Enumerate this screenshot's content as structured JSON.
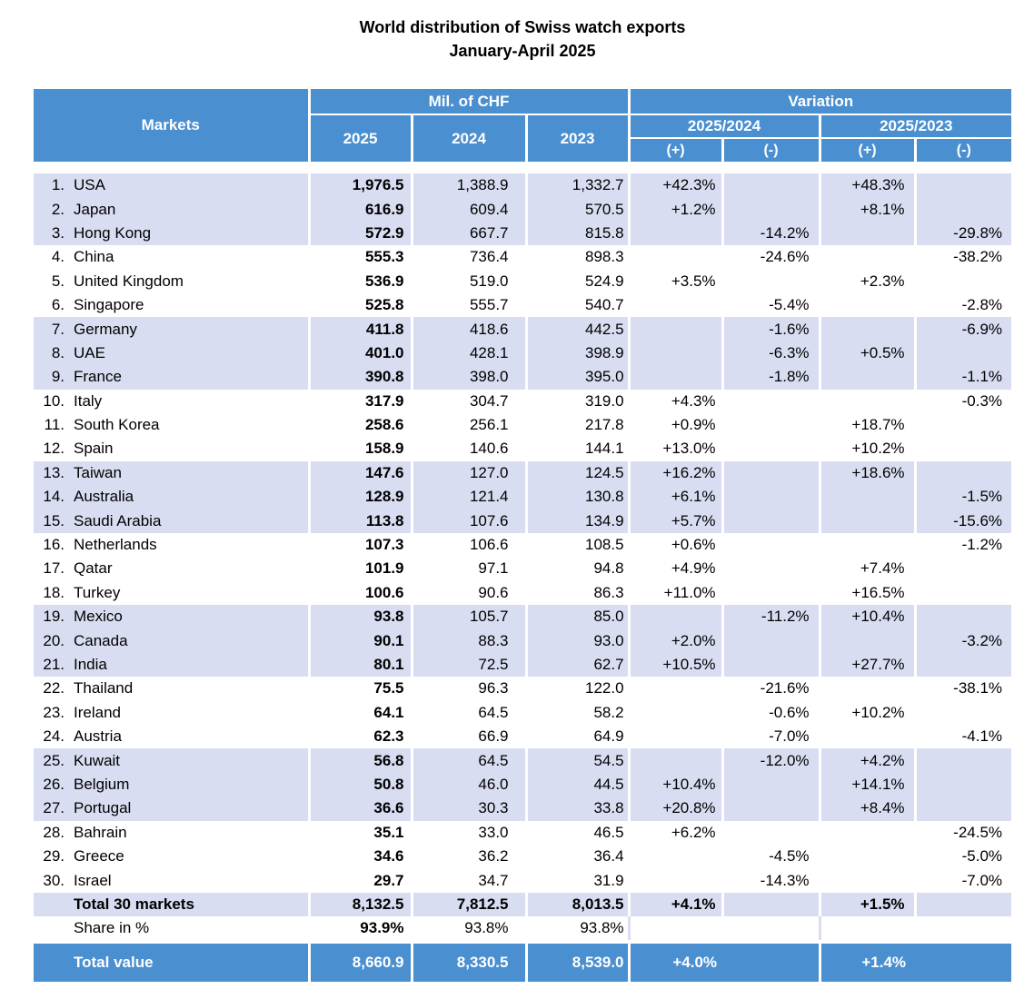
{
  "title": "World distribution of Swiss watch exports",
  "subtitle": "January-April 2025",
  "header": {
    "markets": "Markets",
    "mil_chf": "Mil. of CHF",
    "variation": "Variation",
    "y2025": "2025",
    "y2024": "2024",
    "y2023": "2023",
    "var1": "2025/2024",
    "var2": "2025/2023",
    "plus": "(+)",
    "minus": "(-)"
  },
  "colors": {
    "header_blue": "#4a8fd0",
    "band": "#d9ddf1"
  },
  "rows": [
    {
      "rank": "1.",
      "market": "USA",
      "v2025": "1,976.5",
      "v2024": "1,388.9",
      "v2023": "1,332.7",
      "p1": "+42.3%",
      "m1": "",
      "p2": "+48.3%",
      "m2": ""
    },
    {
      "rank": "2.",
      "market": "Japan",
      "v2025": "616.9",
      "v2024": "609.4",
      "v2023": "570.5",
      "p1": "+1.2%",
      "m1": "",
      "p2": "+8.1%",
      "m2": ""
    },
    {
      "rank": "3.",
      "market": "Hong Kong",
      "v2025": "572.9",
      "v2024": "667.7",
      "v2023": "815.8",
      "p1": "",
      "m1": "-14.2%",
      "p2": "",
      "m2": "-29.8%"
    },
    {
      "rank": "4.",
      "market": "China",
      "v2025": "555.3",
      "v2024": "736.4",
      "v2023": "898.3",
      "p1": "",
      "m1": "-24.6%",
      "p2": "",
      "m2": "-38.2%"
    },
    {
      "rank": "5.",
      "market": "United Kingdom",
      "v2025": "536.9",
      "v2024": "519.0",
      "v2023": "524.9",
      "p1": "+3.5%",
      "m1": "",
      "p2": "+2.3%",
      "m2": ""
    },
    {
      "rank": "6.",
      "market": "Singapore",
      "v2025": "525.8",
      "v2024": "555.7",
      "v2023": "540.7",
      "p1": "",
      "m1": "-5.4%",
      "p2": "",
      "m2": "-2.8%"
    },
    {
      "rank": "7.",
      "market": "Germany",
      "v2025": "411.8",
      "v2024": "418.6",
      "v2023": "442.5",
      "p1": "",
      "m1": "-1.6%",
      "p2": "",
      "m2": "-6.9%"
    },
    {
      "rank": "8.",
      "market": "UAE",
      "v2025": "401.0",
      "v2024": "428.1",
      "v2023": "398.9",
      "p1": "",
      "m1": "-6.3%",
      "p2": "+0.5%",
      "m2": ""
    },
    {
      "rank": "9.",
      "market": "France",
      "v2025": "390.8",
      "v2024": "398.0",
      "v2023": "395.0",
      "p1": "",
      "m1": "-1.8%",
      "p2": "",
      "m2": "-1.1%"
    },
    {
      "rank": "10.",
      "market": "Italy",
      "v2025": "317.9",
      "v2024": "304.7",
      "v2023": "319.0",
      "p1": "+4.3%",
      "m1": "",
      "p2": "",
      "m2": "-0.3%"
    },
    {
      "rank": "11.",
      "market": "South Korea",
      "v2025": "258.6",
      "v2024": "256.1",
      "v2023": "217.8",
      "p1": "+0.9%",
      "m1": "",
      "p2": "+18.7%",
      "m2": ""
    },
    {
      "rank": "12.",
      "market": "Spain",
      "v2025": "158.9",
      "v2024": "140.6",
      "v2023": "144.1",
      "p1": "+13.0%",
      "m1": "",
      "p2": "+10.2%",
      "m2": ""
    },
    {
      "rank": "13.",
      "market": "Taiwan",
      "v2025": "147.6",
      "v2024": "127.0",
      "v2023": "124.5",
      "p1": "+16.2%",
      "m1": "",
      "p2": "+18.6%",
      "m2": ""
    },
    {
      "rank": "14.",
      "market": "Australia",
      "v2025": "128.9",
      "v2024": "121.4",
      "v2023": "130.8",
      "p1": "+6.1%",
      "m1": "",
      "p2": "",
      "m2": "-1.5%"
    },
    {
      "rank": "15.",
      "market": "Saudi Arabia",
      "v2025": "113.8",
      "v2024": "107.6",
      "v2023": "134.9",
      "p1": "+5.7%",
      "m1": "",
      "p2": "",
      "m2": "-15.6%"
    },
    {
      "rank": "16.",
      "market": "Netherlands",
      "v2025": "107.3",
      "v2024": "106.6",
      "v2023": "108.5",
      "p1": "+0.6%",
      "m1": "",
      "p2": "",
      "m2": "-1.2%"
    },
    {
      "rank": "17.",
      "market": "Qatar",
      "v2025": "101.9",
      "v2024": "97.1",
      "v2023": "94.8",
      "p1": "+4.9%",
      "m1": "",
      "p2": "+7.4%",
      "m2": ""
    },
    {
      "rank": "18.",
      "market": "Turkey",
      "v2025": "100.6",
      "v2024": "90.6",
      "v2023": "86.3",
      "p1": "+11.0%",
      "m1": "",
      "p2": "+16.5%",
      "m2": ""
    },
    {
      "rank": "19.",
      "market": "Mexico",
      "v2025": "93.8",
      "v2024": "105.7",
      "v2023": "85.0",
      "p1": "",
      "m1": "-11.2%",
      "p2": "+10.4%",
      "m2": ""
    },
    {
      "rank": "20.",
      "market": "Canada",
      "v2025": "90.1",
      "v2024": "88.3",
      "v2023": "93.0",
      "p1": "+2.0%",
      "m1": "",
      "p2": "",
      "m2": "-3.2%"
    },
    {
      "rank": "21.",
      "market": "India",
      "v2025": "80.1",
      "v2024": "72.5",
      "v2023": "62.7",
      "p1": "+10.5%",
      "m1": "",
      "p2": "+27.7%",
      "m2": ""
    },
    {
      "rank": "22.",
      "market": "Thailand",
      "v2025": "75.5",
      "v2024": "96.3",
      "v2023": "122.0",
      "p1": "",
      "m1": "-21.6%",
      "p2": "",
      "m2": "-38.1%"
    },
    {
      "rank": "23.",
      "market": "Ireland",
      "v2025": "64.1",
      "v2024": "64.5",
      "v2023": "58.2",
      "p1": "",
      "m1": "-0.6%",
      "p2": "+10.2%",
      "m2": ""
    },
    {
      "rank": "24.",
      "market": "Austria",
      "v2025": "62.3",
      "v2024": "66.9",
      "v2023": "64.9",
      "p1": "",
      "m1": "-7.0%",
      "p2": "",
      "m2": "-4.1%"
    },
    {
      "rank": "25.",
      "market": "Kuwait",
      "v2025": "56.8",
      "v2024": "64.5",
      "v2023": "54.5",
      "p1": "",
      "m1": "-12.0%",
      "p2": "+4.2%",
      "m2": ""
    },
    {
      "rank": "26.",
      "market": "Belgium",
      "v2025": "50.8",
      "v2024": "46.0",
      "v2023": "44.5",
      "p1": "+10.4%",
      "m1": "",
      "p2": "+14.1%",
      "m2": ""
    },
    {
      "rank": "27.",
      "market": "Portugal",
      "v2025": "36.6",
      "v2024": "30.3",
      "v2023": "33.8",
      "p1": "+20.8%",
      "m1": "",
      "p2": "+8.4%",
      "m2": ""
    },
    {
      "rank": "28.",
      "market": "Bahrain",
      "v2025": "35.1",
      "v2024": "33.0",
      "v2023": "46.5",
      "p1": "+6.2%",
      "m1": "",
      "p2": "",
      "m2": "-24.5%"
    },
    {
      "rank": "29.",
      "market": "Greece",
      "v2025": "34.6",
      "v2024": "36.2",
      "v2023": "36.4",
      "p1": "",
      "m1": "-4.5%",
      "p2": "",
      "m2": "-5.0%"
    },
    {
      "rank": "30.",
      "market": "Israel",
      "v2025": "29.7",
      "v2024": "34.7",
      "v2023": "31.9",
      "p1": "",
      "m1": "-14.3%",
      "p2": "",
      "m2": "-7.0%"
    }
  ],
  "total30": {
    "label": "Total 30 markets",
    "v2025": "8,132.5",
    "v2024": "7,812.5",
    "v2023": "8,013.5",
    "p1": "+4.1%",
    "m1": "",
    "p2": "+1.5%",
    "m2": ""
  },
  "share": {
    "label": "Share in %",
    "v2025": "93.9%",
    "v2024": "93.8%",
    "v2023": "93.8%"
  },
  "total": {
    "label": "Total value",
    "v2025": "8,660.9",
    "v2024": "8,330.5",
    "v2023": "8,539.0",
    "p1": "+4.0%",
    "m1": "",
    "p2": "+1.4%",
    "m2": ""
  }
}
